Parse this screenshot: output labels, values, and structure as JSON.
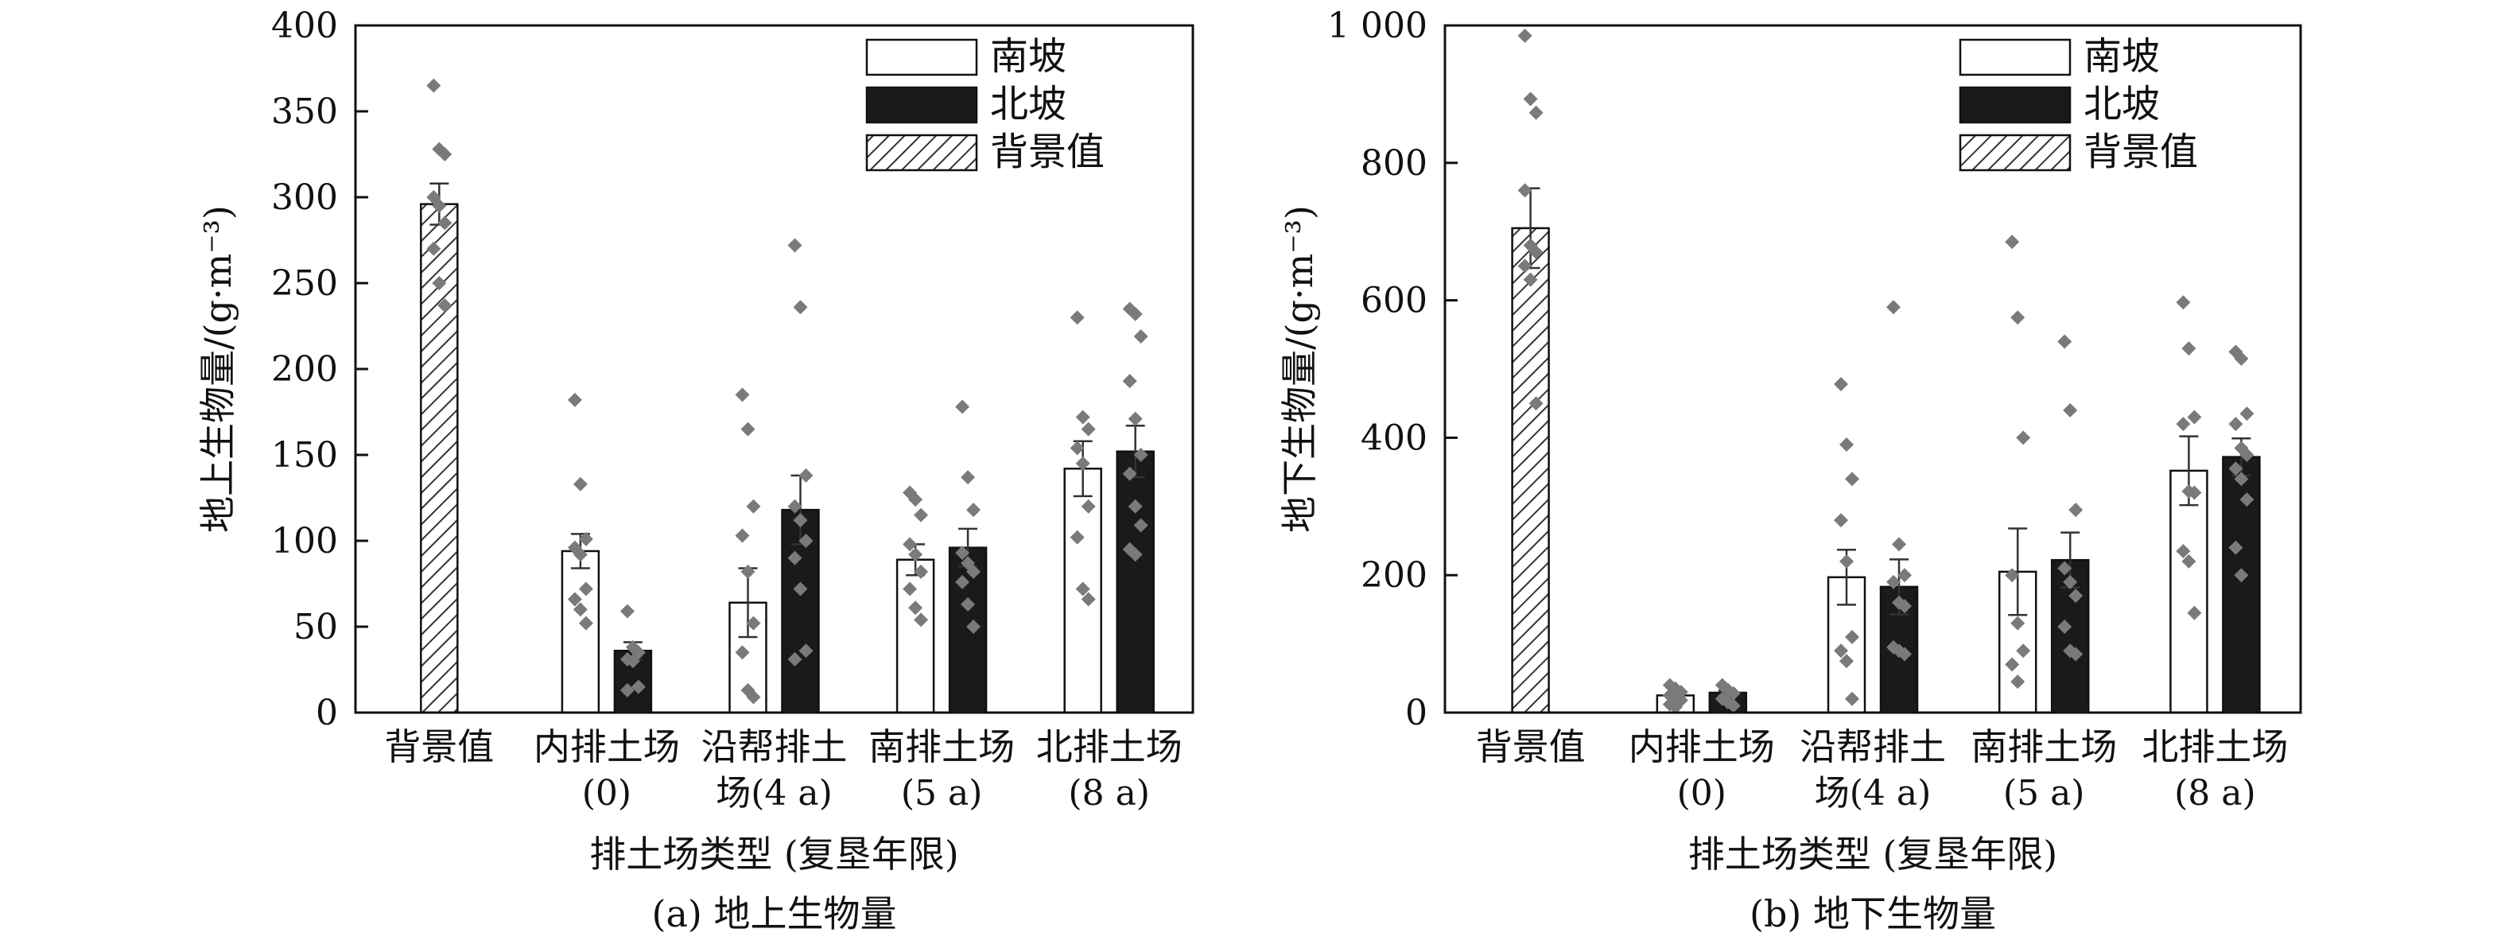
{
  "legend_labels": {
    "south": "南坡",
    "north": "北坡",
    "background": "背景值"
  },
  "colors": {
    "south_fill": "#ffffff",
    "north_fill": "#1a1a1a",
    "points": "#7a7a7a",
    "axis": "#111111"
  },
  "chart_data": [
    {
      "type": "bar",
      "caption": "(a) 地上生物量",
      "xlabel": "排土场类型 (复垦年限)",
      "ylabel": "地上生物量/(g·m⁻³)",
      "ylim": [
        0,
        400
      ],
      "yticks": [
        0,
        50,
        100,
        150,
        200,
        250,
        300,
        350,
        400
      ],
      "ytick_labels": [
        "0",
        "50",
        "100",
        "150",
        "200",
        "250",
        "300",
        "350",
        "400"
      ],
      "legend": "top-right",
      "categories": [
        {
          "line1": "背景值",
          "line2": ""
        },
        {
          "line1": "内排土场",
          "line2": "(0)"
        },
        {
          "line1": "沿帮排土",
          "line2": "场(4 a)"
        },
        {
          "line1": "南排土场",
          "line2": "(5 a)"
        },
        {
          "line1": "北排土场",
          "line2": "(8 a)"
        }
      ],
      "background": {
        "value": 296,
        "error": 12,
        "points": [
          365,
          328,
          325,
          300,
          295,
          285,
          270,
          250,
          237
        ]
      },
      "series": [
        {
          "name": "南坡",
          "values": [
            null,
            94,
            64,
            89,
            142
          ],
          "errors": [
            null,
            10,
            20,
            9,
            16
          ],
          "points": [
            [],
            [
              182,
              133,
              101,
              96,
              92,
              72,
              66,
              60,
              52
            ],
            [
              185,
              165,
              120,
              103,
              82,
              52,
              35,
              13,
              9
            ],
            [
              128,
              124,
              115,
              98,
              92,
              82,
              72,
              61,
              54
            ],
            [
              230,
              172,
              165,
              154,
              145,
              120,
              102,
              72,
              66
            ]
          ]
        },
        {
          "name": "北坡",
          "values": [
            null,
            36,
            118,
            96,
            152
          ],
          "errors": [
            null,
            5,
            20,
            11,
            15
          ],
          "points": [
            [],
            [
              59,
              38,
              35,
              31,
              30,
              15,
              13
            ],
            [
              272,
              236,
              138,
              120,
              112,
              100,
              90,
              72,
              36,
              31
            ],
            [
              178,
              137,
              118,
              93,
              87,
              82,
              76,
              63,
              50
            ],
            [
              235,
              232,
              219,
              193,
              171,
              150,
              139,
              120,
              109,
              95,
              92
            ]
          ]
        }
      ]
    },
    {
      "type": "bar",
      "caption": "(b) 地下生物量",
      "xlabel": "排土场类型 (复垦年限)",
      "ylabel": "地下生物量/(g·m⁻³)",
      "ylim": [
        0,
        1000
      ],
      "yticks": [
        0,
        200,
        400,
        600,
        800,
        1000
      ],
      "ytick_labels": [
        "0",
        "200",
        "400",
        "600",
        "800",
        "1 000"
      ],
      "legend": "top-right",
      "categories": [
        {
          "line1": "背景值",
          "line2": ""
        },
        {
          "line1": "内排土场",
          "line2": "(0)"
        },
        {
          "line1": "沿帮排土",
          "line2": "场(4 a)"
        },
        {
          "line1": "南排土场",
          "line2": "(5 a)"
        },
        {
          "line1": "北排土场",
          "line2": "(8 a)"
        }
      ],
      "background": {
        "value": 705,
        "error": 58,
        "points": [
          985,
          893,
          873,
          760,
          680,
          670,
          650,
          630,
          450
        ]
      },
      "series": [
        {
          "name": "南坡",
          "values": [
            null,
            25,
            197,
            205,
            352
          ],
          "errors": [
            null,
            4,
            40,
            63,
            50
          ],
          "points": [
            [],
            [
              40,
              35,
              30,
              25,
              20,
              18,
              12,
              8
            ],
            [
              478,
              390,
              340,
              280,
              220,
              110,
              90,
              75,
              20
            ],
            [
              685,
              575,
              400,
              200,
              130,
              90,
              70,
              45
            ],
            [
              597,
              530,
              430,
              420,
              322,
              320,
              235,
              220,
              145
            ]
          ]
        },
        {
          "name": "北坡",
          "values": [
            null,
            29,
            183,
            222,
            372
          ],
          "errors": [
            null,
            3,
            40,
            40,
            27
          ],
          "points": [
            [],
            [
              40,
              33,
              28,
              20,
              15,
              10
            ],
            [
              590,
              245,
              200,
              190,
              160,
              155,
              95,
              90,
              85
            ],
            [
              540,
              440,
              295,
              210,
              190,
              170,
              125,
              90,
              85
            ],
            [
              525,
              515,
              435,
              420,
              385,
              375,
              355,
              340,
              310,
              240,
              200
            ]
          ]
        }
      ]
    }
  ]
}
